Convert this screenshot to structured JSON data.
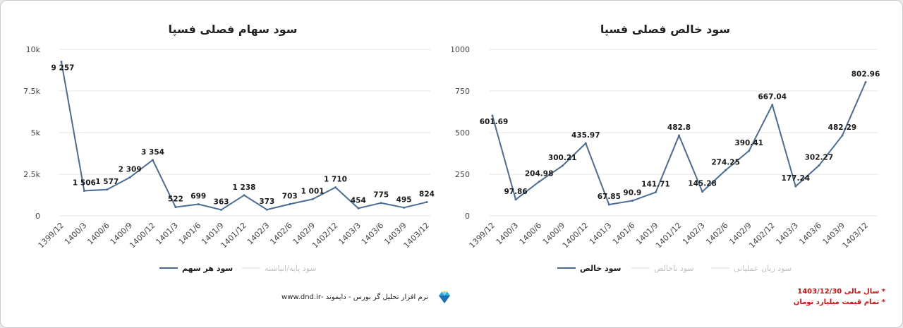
{
  "chart_data": [
    {
      "type": "line",
      "title": "سود سهام فصلی فسپا",
      "categories": [
        "1399/12",
        "1400/3",
        "1400/6",
        "1400/9",
        "1400/12",
        "1401/3",
        "1401/6",
        "1401/9",
        "1401/12",
        "1402/3",
        "1402/6",
        "1402/9",
        "1402/12",
        "1403/3",
        "1403/6",
        "1403/9",
        "1403/12"
      ],
      "series": [
        {
          "name": "سود هر سهم",
          "values": [
            9257,
            1506,
            1577,
            2309,
            3354,
            522,
            699,
            363,
            1238,
            373,
            703,
            1001,
            1710,
            454,
            775,
            495,
            824
          ],
          "color": "#4a6d96"
        }
      ],
      "value_labels": [
        "9 257",
        "1 506",
        "1 577",
        "2 309",
        "3 354",
        "522",
        "699",
        "363",
        "1 238",
        "373",
        "703",
        "1 001",
        "1 710",
        "454",
        "775",
        "495",
        "824"
      ],
      "legend": [
        {
          "label": "سود هر سهم",
          "active": true
        },
        {
          "label": "سود پایه/انباشته",
          "active": false
        }
      ],
      "ylim": [
        0,
        10000
      ],
      "yticks": [
        0,
        2500,
        5000,
        7500,
        10000
      ],
      "ytick_labels": [
        "0",
        "2.5k",
        "5k",
        "7.5k",
        "10k"
      ],
      "grid": true,
      "legend_position": "bottom"
    },
    {
      "type": "line",
      "title": "سود خالص فصلی فسپا",
      "categories": [
        "1399/12",
        "1400/3",
        "1400/6",
        "1400/9",
        "1400/12",
        "1401/3",
        "1401/6",
        "1401/9",
        "1401/12",
        "1402/3",
        "1402/6",
        "1402/9",
        "1402/12",
        "1403/3",
        "1403/6",
        "1403/9",
        "1403/12"
      ],
      "series": [
        {
          "name": "سود خالص",
          "values": [
            601.69,
            97.86,
            204.98,
            300.21,
            435.97,
            67.85,
            90.9,
            141.71,
            482.8,
            145.28,
            274.25,
            390.41,
            667.04,
            177.24,
            302.27,
            482.29,
            802.96
          ],
          "color": "#4a6d96"
        }
      ],
      "value_labels": [
        "601.69",
        "97.86",
        "204.98",
        "300.21",
        "435.97",
        "67.85",
        "90.9",
        "141.71",
        "482.8",
        "145.28",
        "274.25",
        "390.41",
        "667.04",
        "177.24",
        "302.27",
        "482.29",
        "802.96"
      ],
      "legend": [
        {
          "label": "سود خالص",
          "active": true
        },
        {
          "label": "سود ناخالص",
          "active": false
        },
        {
          "label": "سود زیان عملیاتی",
          "active": false
        }
      ],
      "ylim": [
        0,
        1000
      ],
      "yticks": [
        0,
        250,
        500,
        750,
        1000
      ],
      "ytick_labels": [
        "0",
        "250",
        "500",
        "750",
        "1000"
      ],
      "grid": true,
      "legend_position": "bottom"
    }
  ],
  "footer": {
    "brand_text": "نرم افزار تحلیل گر بورس - دایموند -www.dnd.ir",
    "brand_icon": "diamond-icon"
  },
  "notes": [
    "* سال مالی 1403/12/30",
    "* تمام قیمت میلیارد تومان"
  ],
  "colors": {
    "line": "#4a6d96",
    "grid": "#e4e4e4",
    "note_red": "#d01010",
    "legend_inactive": "#c3c3c3"
  }
}
